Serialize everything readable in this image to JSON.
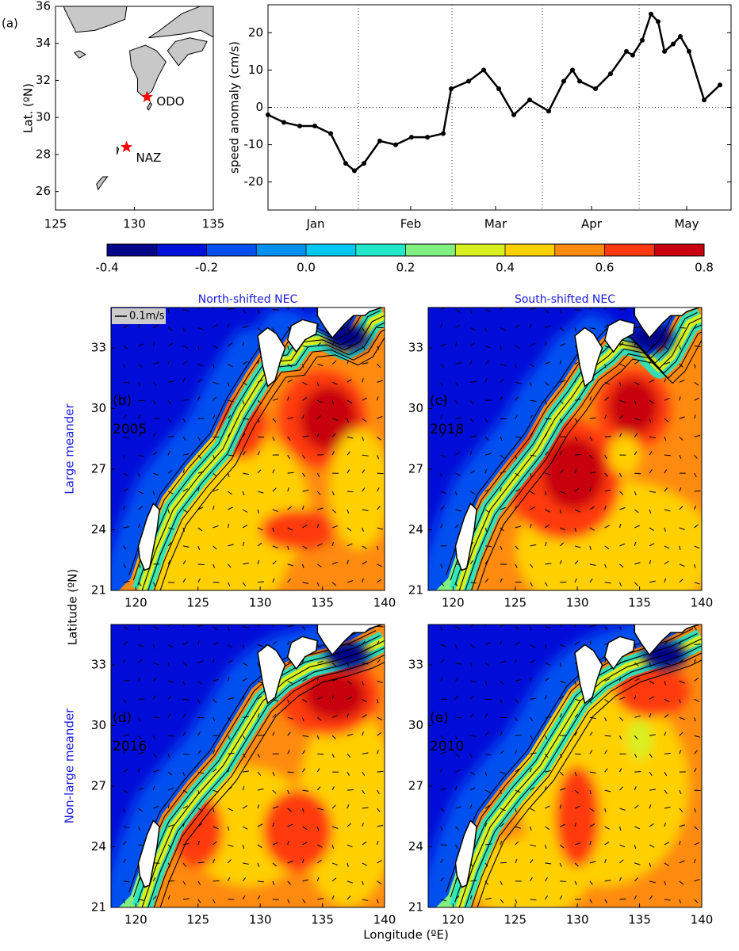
{
  "chart_data": {
    "type": "line",
    "ylabel": "speed anomaly (cm/s)",
    "x": [
      0,
      2,
      4,
      5.9,
      7.9,
      9.8,
      10.9,
      12.1,
      14.1,
      16.1,
      18.1,
      20.1,
      22.1,
      23.1,
      25.3,
      27.2,
      29.1,
      31,
      33,
      35.4,
      37.3,
      38.4,
      39.3,
      41.3,
      43.2,
      45.2,
      46,
      47.2,
      48.3,
      49.2,
      50,
      51.1,
      52,
      53.1,
      55,
      57
    ],
    "series": [
      {
        "name": "speed anomaly",
        "color": "#000000",
        "values": [
          -2,
          -4,
          -5,
          -5,
          -7,
          -15,
          -17,
          -15,
          -9,
          -10,
          -8,
          -8,
          -7,
          5,
          7,
          10,
          5,
          -2,
          2,
          -1,
          7,
          10,
          7,
          5,
          9,
          15,
          14,
          18,
          25,
          23,
          15,
          17,
          19,
          15,
          2,
          6
        ]
      }
    ],
    "xlim": [
      0,
      58.4
    ],
    "xticks": [
      {
        "value": 6,
        "label": "Jan"
      },
      {
        "value": 18,
        "label": "Feb"
      },
      {
        "value": 28.7,
        "label": "Mar"
      },
      {
        "value": 40.8,
        "label": "Apr"
      },
      {
        "value": 52.8,
        "label": "May"
      }
    ],
    "vlines": [
      11.4,
      23.2,
      34.6,
      46.8
    ],
    "hline": 0,
    "ylim": [
      -27.5,
      27.5
    ],
    "yticks": [
      -20,
      -10,
      0,
      10,
      20
    ]
  },
  "inset_map": {
    "label": "(a)",
    "ylabel": "Lat. (ºN)",
    "xlim": [
      125,
      135
    ],
    "xticks": [
      125,
      130,
      135
    ],
    "ylim": [
      25,
      36
    ],
    "yticks": [
      26,
      28,
      30,
      32,
      34,
      36
    ],
    "stations": [
      {
        "name": "ODO",
        "lon": 130.8,
        "lat": 31.1
      },
      {
        "name": "NAZ",
        "lon": 129.5,
        "lat": 28.4
      }
    ],
    "star_color": "#ff0000"
  },
  "colorbar": {
    "lim": [
      -0.4,
      0.8
    ],
    "ticks": [
      -0.4,
      -0.2,
      {
        "value": 0,
        "label": "0.0"
      },
      0.2,
      0.4,
      0.6,
      0.8
    ],
    "colors": [
      "#06068a",
      "#0010d8",
      "#0050f0",
      "#0090f0",
      "#00c8f0",
      "#20e8c8",
      "#80f080",
      "#d8f020",
      "#ffd000",
      "#ff8a10",
      "#ff3a10",
      "#c80010"
    ]
  },
  "panels": {
    "xlim": [
      118,
      140
    ],
    "xticks": [
      120,
      125,
      130,
      135,
      140
    ],
    "ylim": [
      21,
      35
    ],
    "yticks": [
      21,
      24,
      27,
      30,
      33
    ],
    "xlabel": "Longitude (ºE)",
    "ylabel": "Latitude (ºN)",
    "columns": [
      "North-shifted NEC",
      "South-shifted NEC"
    ],
    "rows": [
      "Large meander",
      "Non-large meander"
    ],
    "scale_label": "0.1m/s",
    "items": [
      {
        "label": "(b)",
        "year": "2005"
      },
      {
        "label": "(c)",
        "year": "2018"
      },
      {
        "label": "(d)",
        "year": "2016"
      },
      {
        "label": "(e)",
        "year": "2010"
      }
    ]
  }
}
